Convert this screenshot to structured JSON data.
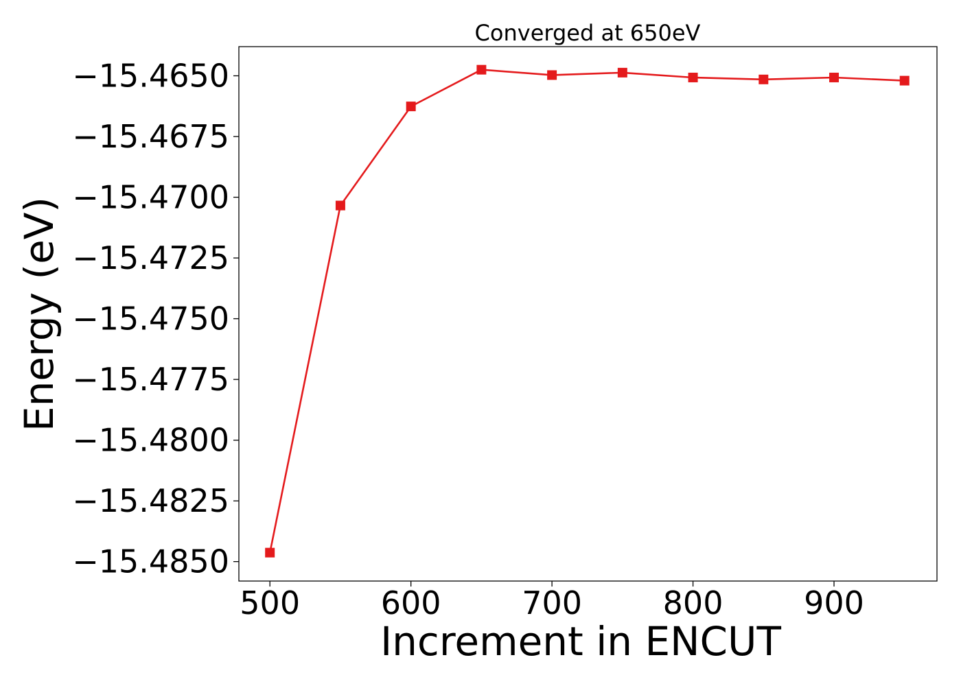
{
  "chart_data": {
    "type": "line",
    "title": "Converged at 650eV",
    "xlabel": "Increment in ENCUT",
    "ylabel": "Energy (eV)",
    "xlim": [
      478,
      973
    ],
    "ylim": [
      -15.4858,
      -15.4638
    ],
    "xticks": [
      500,
      600,
      700,
      800,
      900
    ],
    "xtick_labels": [
      "500",
      "600",
      "700",
      "800",
      "900"
    ],
    "yticks": [
      -15.465,
      -15.4675,
      -15.47,
      -15.4725,
      -15.475,
      -15.4775,
      -15.48,
      -15.4825,
      -15.485
    ],
    "ytick_labels": [
      "−15.4650",
      "−15.4675",
      "−15.4700",
      "−15.4725",
      "−15.4750",
      "−15.4775",
      "−15.4800",
      "−15.4825",
      "−15.4850"
    ],
    "grid": false,
    "series": [
      {
        "color": "#e41a1c",
        "marker": "square",
        "x": [
          500,
          550,
          600,
          650,
          700,
          750,
          800,
          850,
          900,
          950
        ],
        "y": [
          -15.48463,
          -15.47034,
          -15.46626,
          -15.46475,
          -15.46497,
          -15.46487,
          -15.46507,
          -15.46515,
          -15.46507,
          -15.4652
        ]
      }
    ]
  }
}
